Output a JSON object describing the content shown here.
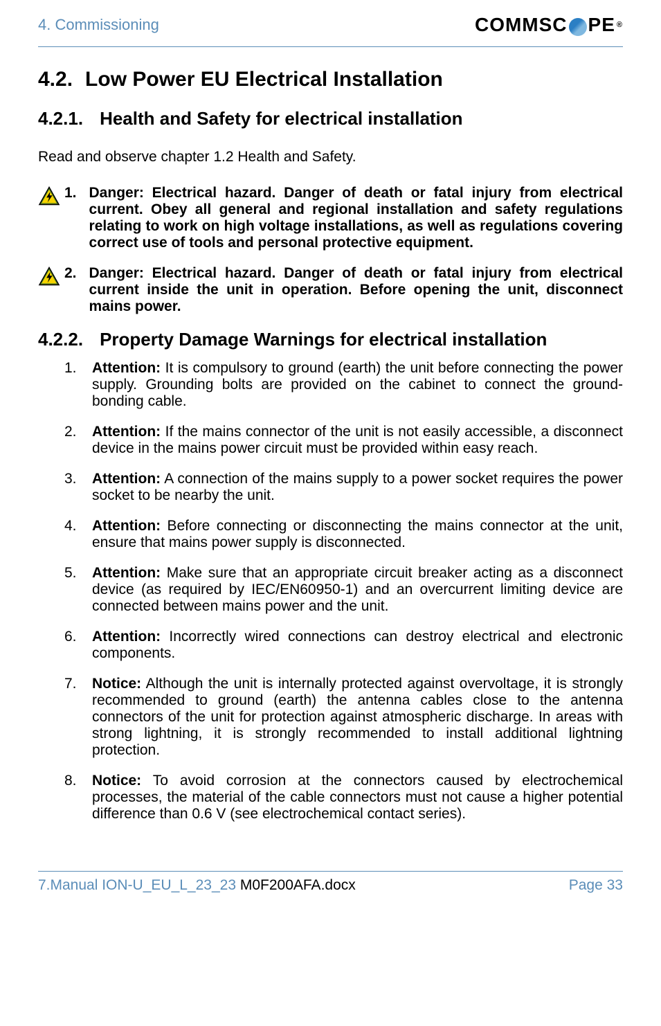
{
  "header": {
    "section": "4. Commissioning",
    "logo_before": "COMMSC",
    "logo_after": "PE"
  },
  "h1": {
    "num": "4.2.",
    "title": "Low Power EU Electrical Installation"
  },
  "h2a": {
    "num": "4.2.1.",
    "title": "Health and Safety for electrical installation"
  },
  "intro": "Read and observe chapter 1.2 Health and Safety.",
  "dangers": [
    {
      "n": "1.",
      "text": "Danger: Electrical hazard. Danger of death or fatal injury from electrical current. Obey all general and regional installation and safety regulations relating to work on high voltage installations, as well as regulations covering correct use of tools and personal protective equipment."
    },
    {
      "n": "2.",
      "text": "Danger: Electrical hazard. Danger of death or fatal injury from electrical current inside the unit in operation. Before opening the unit, disconnect mains power."
    }
  ],
  "h2b": {
    "num": "4.2.2.",
    "title": "Property Damage Warnings for electrical installation"
  },
  "items": [
    {
      "n": "1.",
      "lead": "Attention:",
      "text": " It is compulsory to ground (earth) the unit before connecting the power supply. Grounding bolts are provided on the cabinet to connect the ground-bonding cable."
    },
    {
      "n": "2.",
      "lead": "Attention:",
      "text": " If the mains connector of the unit is not easily accessible, a disconnect device in the mains power circuit must be provided within easy reach."
    },
    {
      "n": "3.",
      "lead": "Attention:",
      "text": " A connection of the mains supply to a power socket requires the power socket to be nearby the unit."
    },
    {
      "n": "4.",
      "lead": "Attention:",
      "text": " Before connecting or disconnecting the mains connector at the unit, ensure that mains power supply is disconnected."
    },
    {
      "n": "5.",
      "lead": "Attention:",
      "text": " Make sure that an appropriate circuit breaker acting as a disconnect device (as required by IEC/EN60950-1) and an overcurrent limiting device are connected between mains power and the unit."
    },
    {
      "n": "6.",
      "lead": "Attention:",
      "text": " Incorrectly wired connections can destroy electrical and electronic components."
    },
    {
      "n": "7.",
      "lead": "Notice:",
      "text": " Although the unit is internally protected against overvoltage, it is strongly recommended to ground (earth) the antenna cables close to the antenna connectors of the unit for protection against atmospheric discharge. In areas with strong lightning, it is strongly recommended to install additional lightning protection."
    },
    {
      "n": "8.",
      "lead": "Notice:",
      "text": " To avoid corrosion at the connectors caused by electrochemical processes, the material of the cable connectors must not cause a higher potential difference than 0.6 V (see electrochemical contact series)."
    }
  ],
  "footer": {
    "left_blue": "7.Manual ION-U_EU_L_23_23 ",
    "left_black": "M0F200AFA.docx",
    "right": "Page 33"
  },
  "colors": {
    "accent": "#5b8db8",
    "hazard_yellow": "#f7d400",
    "hazard_border": "#000000",
    "hazard_green": "#3c7a2e"
  }
}
